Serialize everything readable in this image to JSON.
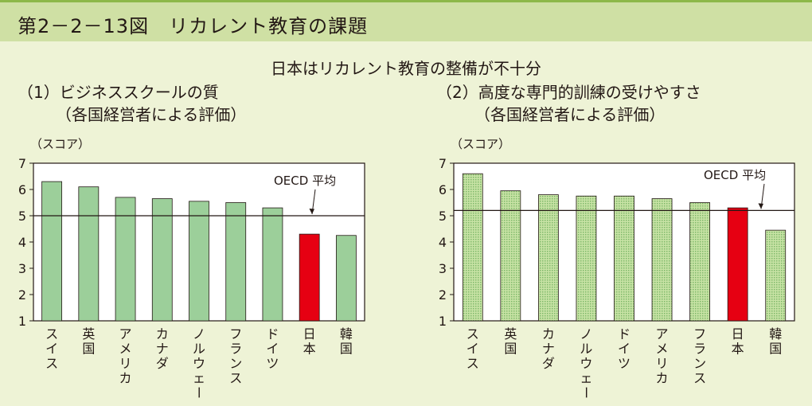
{
  "figure": {
    "title": "第2－2－13図　リカレント教育の課題",
    "subtitle": "日本はリカレント教育の整備が不十分"
  },
  "colors": {
    "header_bg": "#cfe0a4",
    "page_bg": "#eef3d6",
    "bar_green": "#9ccf9a",
    "bar_dotted": "#c8e3a5",
    "bar_japan": "#e60012"
  },
  "chart_data": [
    {
      "type": "bar",
      "title_line1": "（1）ビジネススクールの質",
      "title_line2": "（各国経営者による評価）",
      "ylabel": "（スコア）",
      "ylim": [
        1,
        7
      ],
      "yticks": [
        "1",
        "2",
        "3",
        "4",
        "5",
        "6",
        "7"
      ],
      "categories": [
        "スイス",
        "英国",
        "アメリカ",
        "カナダ",
        "ノルウェー",
        "フランス",
        "ドイツ",
        "日本",
        "韓国"
      ],
      "values": [
        6.3,
        6.1,
        5.7,
        5.65,
        5.55,
        5.5,
        5.3,
        4.3,
        4.25
      ],
      "highlight": "日本",
      "reference_line": {
        "label": "OECD 平均",
        "value": 5.0
      },
      "pattern": "solid",
      "grid": false
    },
    {
      "type": "bar",
      "title_line1": "（2）高度な専門的訓練の受けやすさ",
      "title_line2": "（各国経営者による評価）",
      "ylabel": "（スコア）",
      "ylim": [
        1,
        7
      ],
      "yticks": [
        "1",
        "2",
        "3",
        "4",
        "5",
        "6",
        "7"
      ],
      "categories": [
        "スイス",
        "英国",
        "カナダ",
        "ノルウェー",
        "ドイツ",
        "アメリカ",
        "フランス",
        "日本",
        "韓国"
      ],
      "values": [
        6.6,
        5.95,
        5.8,
        5.75,
        5.75,
        5.65,
        5.5,
        5.3,
        4.45
      ],
      "highlight": "日本",
      "reference_line": {
        "label": "OECD 平均",
        "value": 5.2
      },
      "pattern": "dotted",
      "grid": false
    }
  ]
}
